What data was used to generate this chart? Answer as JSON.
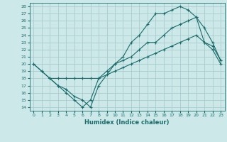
{
  "title": "",
  "xlabel": "Humidex (Indice chaleur)",
  "bg_color": "#cce8e8",
  "grid_color": "#aacccc",
  "line_color": "#1a6b6b",
  "xlim": [
    -0.5,
    23.5
  ],
  "ylim": [
    13.5,
    28.5
  ],
  "xticks": [
    0,
    1,
    2,
    3,
    4,
    5,
    6,
    7,
    8,
    9,
    10,
    11,
    12,
    13,
    14,
    15,
    16,
    17,
    18,
    19,
    20,
    21,
    22,
    23
  ],
  "yticks": [
    14,
    15,
    16,
    17,
    18,
    19,
    20,
    21,
    22,
    23,
    24,
    25,
    26,
    27,
    28
  ],
  "line1_x": [
    0,
    1,
    2,
    3,
    4,
    5,
    6,
    7,
    8,
    10,
    11,
    12,
    13,
    14,
    15,
    16,
    17,
    18,
    19,
    20,
    21,
    22,
    23
  ],
  "line1_y": [
    20,
    19,
    18,
    17,
    16.5,
    15.5,
    15,
    14,
    17,
    20,
    21,
    23,
    24,
    25.5,
    27,
    27,
    27.5,
    28,
    27.5,
    26.5,
    25,
    23,
    20.5
  ],
  "line2_x": [
    0,
    1,
    2,
    3,
    4,
    5,
    6,
    7,
    8,
    9,
    10,
    11,
    12,
    13,
    14,
    15,
    16,
    17,
    18,
    19,
    20,
    21,
    22,
    23
  ],
  "line2_y": [
    20,
    19,
    18,
    17,
    16,
    15,
    14,
    15,
    18,
    19,
    20,
    20.5,
    21,
    22,
    23,
    23,
    24,
    25,
    25.5,
    26,
    26.5,
    23,
    22,
    20
  ],
  "line3_x": [
    2,
    3,
    4,
    5,
    6,
    7,
    8,
    9,
    10,
    11,
    12,
    13,
    14,
    15,
    16,
    17,
    18,
    19,
    20,
    21,
    22,
    23
  ],
  "line3_y": [
    18,
    18,
    18,
    18,
    18,
    18,
    18,
    18.5,
    19,
    19.5,
    20,
    20.5,
    21,
    21.5,
    22,
    22.5,
    23,
    23.5,
    24,
    23,
    22.5,
    20.5
  ]
}
